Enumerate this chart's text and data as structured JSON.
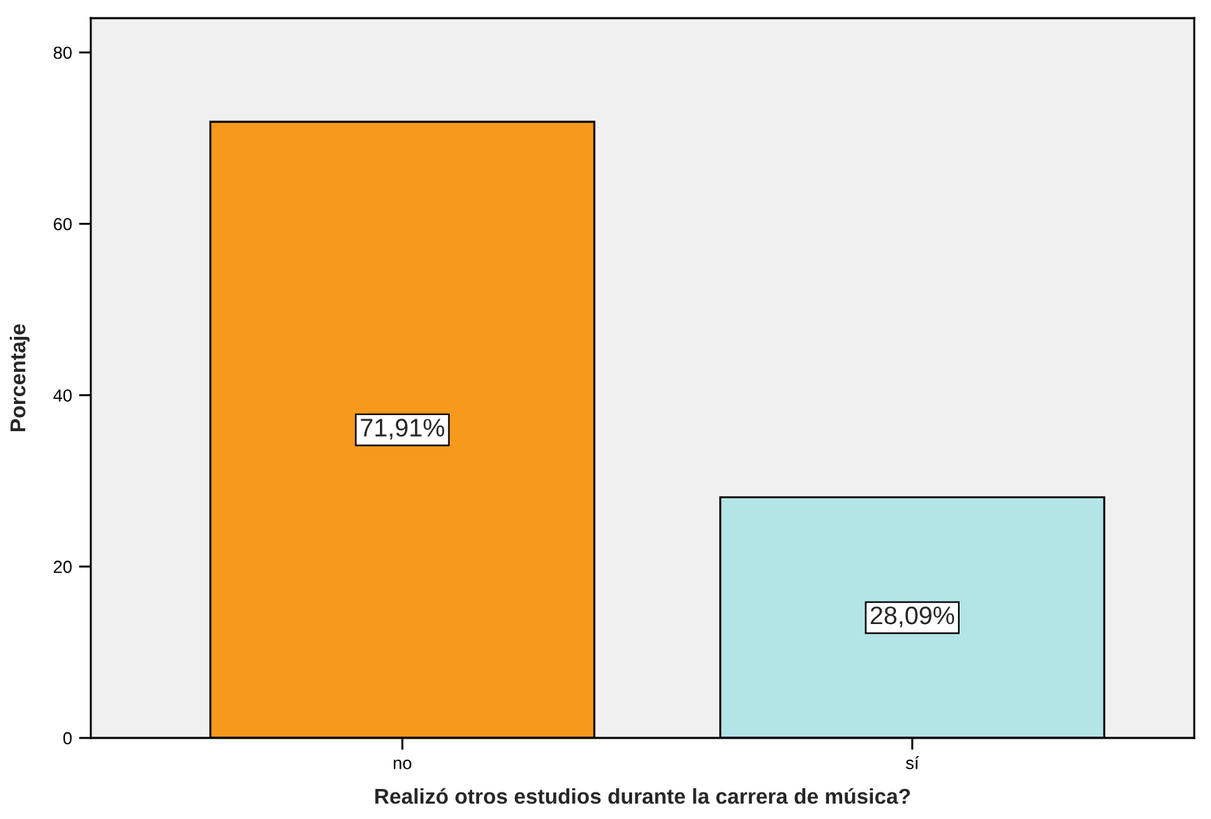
{
  "chart_data": {
    "type": "bar",
    "xlabel": "Realizó otros estudios durante la carrera de música?",
    "ylabel": "Porcentaje",
    "categories": [
      "no",
      "sí"
    ],
    "values": [
      71.91,
      28.09
    ],
    "colors": [
      "#f7991c",
      "#b3e4e6"
    ],
    "value_labels": [
      "71,91%",
      "28,09%"
    ],
    "ylim": [
      0,
      84
    ],
    "yticks": [
      0,
      20,
      40,
      60,
      80
    ],
    "grid": false,
    "legend": false
  }
}
